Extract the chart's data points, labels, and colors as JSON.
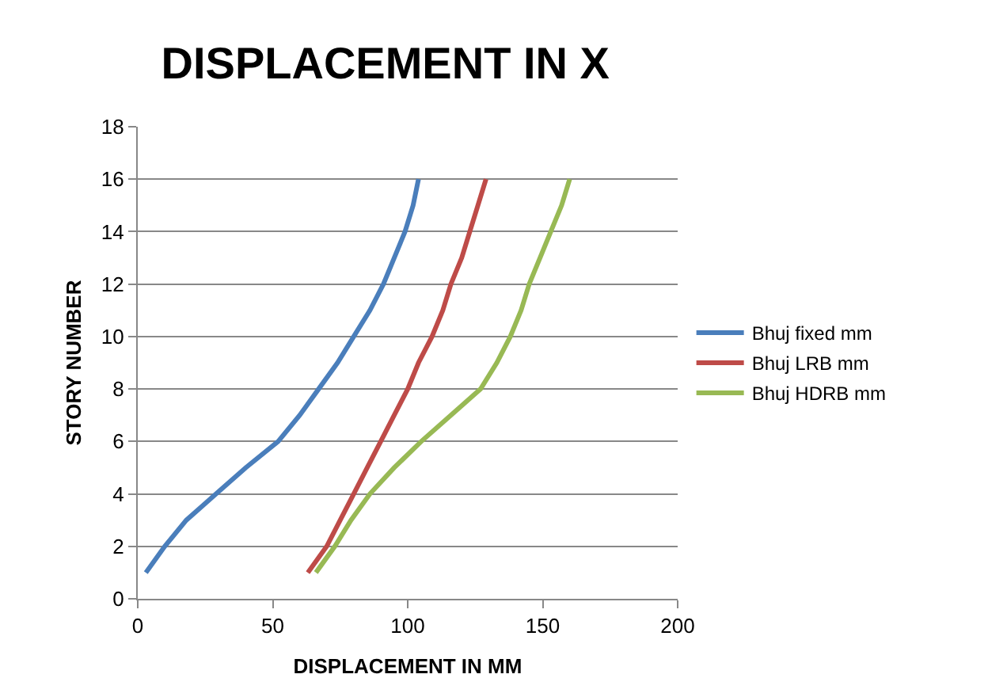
{
  "chart_data": {
    "type": "line",
    "title": "DISPLACEMENT IN X",
    "xlabel": "DISPLACEMENT IN MM",
    "ylabel": "STORY NUMBER",
    "xlim": [
      0,
      200
    ],
    "xticks": [
      0,
      50,
      100,
      150,
      200
    ],
    "ylim": [
      0,
      18
    ],
    "yticks": [
      0,
      2,
      4,
      6,
      8,
      10,
      12,
      14,
      16,
      18
    ],
    "grid": "y",
    "legend": "right",
    "marker": "none",
    "series": [
      {
        "name": "Bhuj fixed mm",
        "color": "#4a7ebb",
        "x": [
          3,
          10,
          18,
          29,
          40,
          52,
          60,
          67,
          74,
          80,
          86,
          91,
          95,
          99,
          102,
          104
        ],
        "values": [
          1,
          2,
          3,
          4,
          5,
          6,
          7,
          8,
          9,
          10,
          11,
          12,
          13,
          14,
          15,
          16
        ]
      },
      {
        "name": "Bhuj LRB mm",
        "color": "#be4b48",
        "x": [
          63,
          70,
          75,
          80,
          85,
          90,
          95,
          100,
          104,
          109,
          113,
          116,
          120,
          123,
          126,
          129
        ],
        "values": [
          1,
          2,
          3,
          4,
          5,
          6,
          7,
          8,
          9,
          10,
          11,
          12,
          13,
          14,
          15,
          16
        ]
      },
      {
        "name": "Bhuj HDRB mm",
        "color": "#98b954",
        "x": [
          66,
          73,
          79,
          86,
          95,
          105,
          116,
          127,
          133,
          138,
          142,
          145,
          149,
          153,
          157,
          160
        ],
        "values": [
          1,
          2,
          3,
          4,
          5,
          6,
          7,
          8,
          9,
          10,
          11,
          12,
          13,
          14,
          15,
          16
        ]
      }
    ]
  }
}
